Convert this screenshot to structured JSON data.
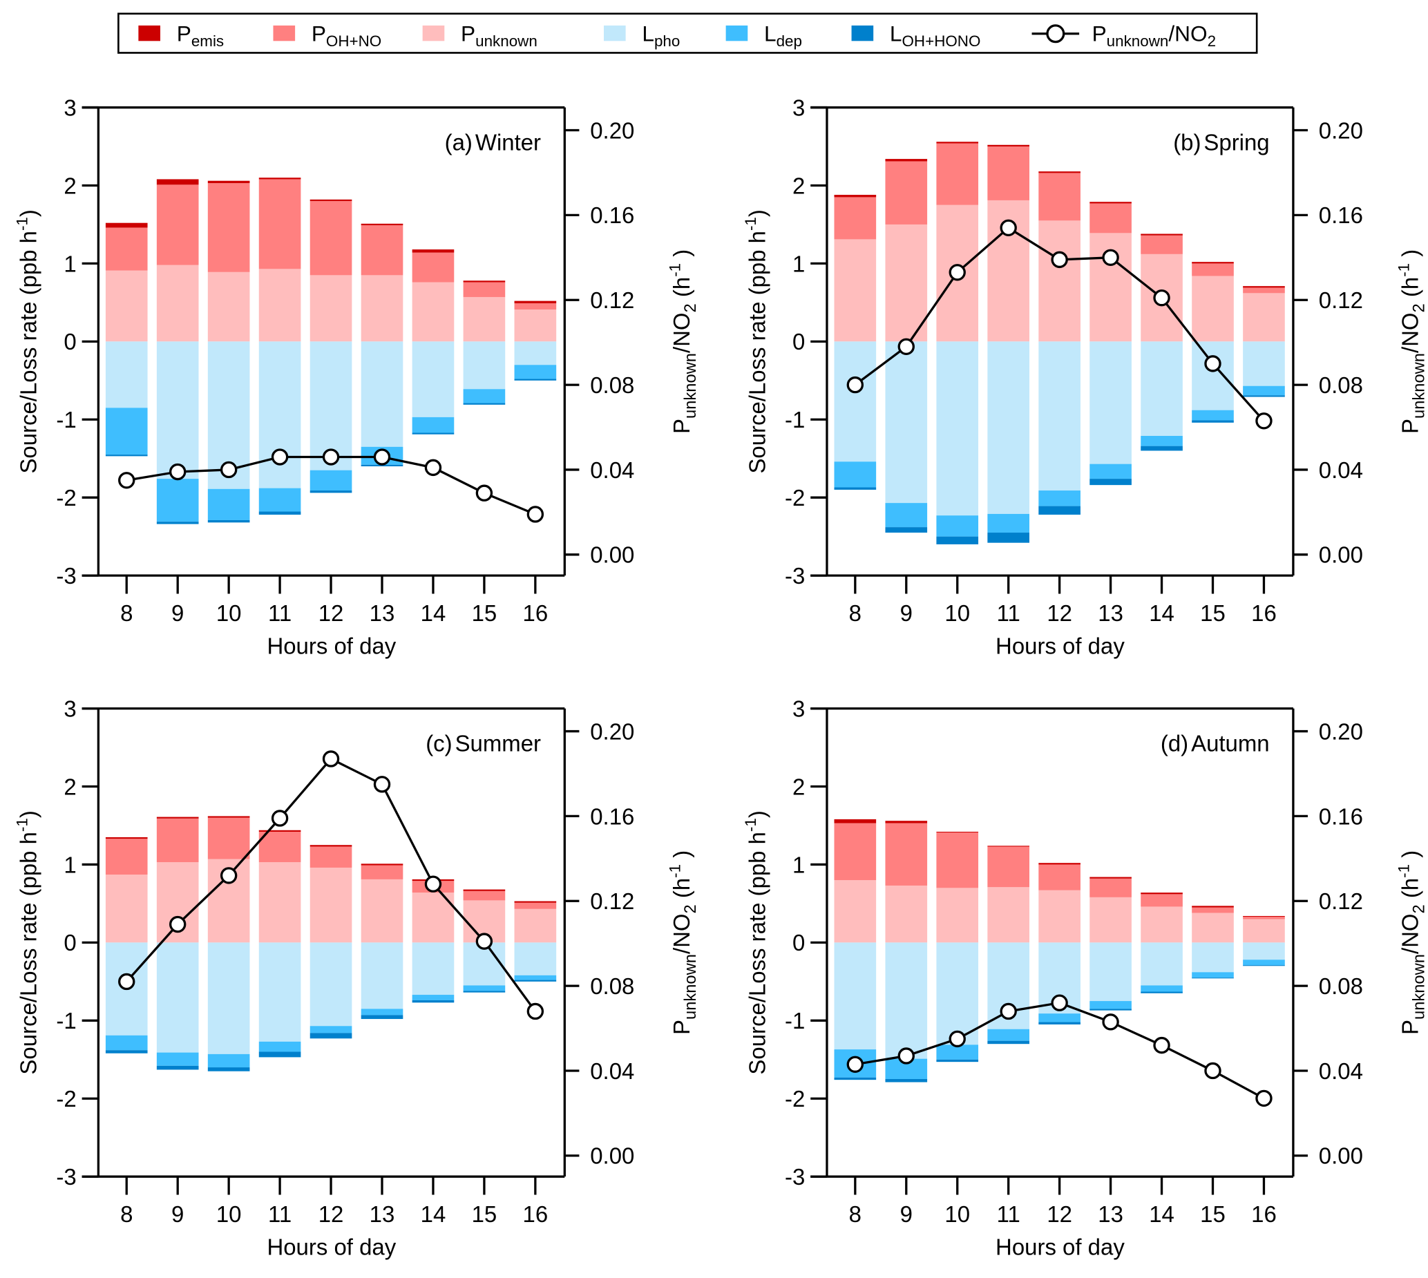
{
  "legend": {
    "items": [
      {
        "key": "P_emis",
        "main": "P",
        "sub": "emis",
        "color": "#cc0000",
        "kind": "bar"
      },
      {
        "key": "P_OH_NO",
        "main": "P",
        "sub": "OH+NO",
        "color": "#ff8080",
        "kind": "bar"
      },
      {
        "key": "P_unknown",
        "main": "P",
        "sub": "unknown",
        "color": "#ffbdbd",
        "kind": "bar"
      },
      {
        "key": "L_pho",
        "main": "L",
        "sub": "pho",
        "color": "#c1e8fb",
        "kind": "bar"
      },
      {
        "key": "L_dep",
        "main": "L",
        "sub": "dep",
        "color": "#3fbefe",
        "kind": "bar"
      },
      {
        "key": "L_OH_HONO",
        "main": "L",
        "sub": "OH+HONO",
        "color": "#0080cc",
        "kind": "bar"
      },
      {
        "key": "ratio",
        "main": "P",
        "sub": "unknown",
        "suffix": "/NO",
        "suffix_sub": "2",
        "color": "#000000",
        "kind": "line"
      }
    ]
  },
  "chart_data": [
    {
      "type": "bar",
      "panel": "a",
      "title": "(a) Winter",
      "label_prefix": "(a)",
      "label_name": "Winter",
      "xlabel": "Hours of day",
      "ylabel": "Source/Loss rate (ppb h-1)",
      "y2label": "Punknown/NO2 (h-1)",
      "categories": [
        "8",
        "9",
        "10",
        "11",
        "12",
        "13",
        "14",
        "15",
        "16"
      ],
      "ylim": [
        -3,
        3
      ],
      "yticks": [
        "3",
        "2",
        "1",
        "0",
        "-1",
        "-2",
        "-3"
      ],
      "y2lim": [
        -0.01,
        0.21
      ],
      "y2ticks": [
        "0.20",
        "0.16",
        "0.12",
        "0.08",
        "0.04",
        "0.00"
      ],
      "stacked": true,
      "series": [
        {
          "name": "P_unknown",
          "values": [
            0.91,
            0.98,
            0.89,
            0.93,
            0.85,
            0.85,
            0.76,
            0.57,
            0.41
          ]
        },
        {
          "name": "P_OH+NO",
          "values": [
            0.55,
            1.03,
            1.14,
            1.15,
            0.95,
            0.64,
            0.38,
            0.19,
            0.08
          ]
        },
        {
          "name": "P_emis",
          "values": [
            0.06,
            0.07,
            0.03,
            0.02,
            0.02,
            0.02,
            0.04,
            0.02,
            0.03
          ]
        },
        {
          "name": "L_pho",
          "values": [
            -0.85,
            -1.76,
            -1.89,
            -1.88,
            -1.65,
            -1.35,
            -0.97,
            -0.61,
            -0.3
          ]
        },
        {
          "name": "L_dep",
          "values": [
            -0.6,
            -0.55,
            -0.4,
            -0.3,
            -0.26,
            -0.23,
            -0.2,
            -0.18,
            -0.18
          ]
        },
        {
          "name": "L_OH+HONO",
          "values": [
            -0.02,
            -0.03,
            -0.03,
            -0.04,
            -0.03,
            -0.02,
            -0.02,
            -0.02,
            -0.02
          ]
        }
      ],
      "line": {
        "name": "Punknown/NO2",
        "axis": "right",
        "values": [
          0.035,
          0.039,
          0.04,
          0.046,
          0.046,
          0.046,
          0.041,
          0.029,
          0.019
        ]
      }
    },
    {
      "type": "bar",
      "panel": "b",
      "title": "(b) Spring",
      "label_prefix": "(b)",
      "label_name": "Spring",
      "xlabel": "Hours of day",
      "ylabel": "Source/Loss rate (ppb h-1)",
      "y2label": "Punknown/NO2 (h-1)",
      "categories": [
        "8",
        "9",
        "10",
        "11",
        "12",
        "13",
        "14",
        "15",
        "16"
      ],
      "ylim": [
        -3,
        3
      ],
      "yticks": [
        "3",
        "2",
        "1",
        "0",
        "-1",
        "-2",
        "-3"
      ],
      "y2lim": [
        -0.01,
        0.21
      ],
      "y2ticks": [
        "0.20",
        "0.16",
        "0.12",
        "0.08",
        "0.04",
        "0.00"
      ],
      "stacked": true,
      "series": [
        {
          "name": "P_unknown",
          "values": [
            1.31,
            1.5,
            1.75,
            1.81,
            1.55,
            1.39,
            1.12,
            0.84,
            0.62
          ]
        },
        {
          "name": "P_OH+NO",
          "values": [
            0.54,
            0.81,
            0.79,
            0.69,
            0.61,
            0.38,
            0.24,
            0.16,
            0.07
          ]
        },
        {
          "name": "P_emis",
          "values": [
            0.03,
            0.03,
            0.02,
            0.02,
            0.02,
            0.02,
            0.02,
            0.02,
            0.02
          ]
        },
        {
          "name": "L_pho",
          "values": [
            -1.54,
            -2.07,
            -2.23,
            -2.21,
            -1.91,
            -1.57,
            -1.21,
            -0.88,
            -0.57
          ]
        },
        {
          "name": "L_dep",
          "values": [
            -0.33,
            -0.31,
            -0.27,
            -0.24,
            -0.2,
            -0.19,
            -0.13,
            -0.13,
            -0.12
          ]
        },
        {
          "name": "L_OH+HONO",
          "values": [
            -0.03,
            -0.07,
            -0.1,
            -0.13,
            -0.11,
            -0.08,
            -0.06,
            -0.03,
            -0.02
          ]
        }
      ],
      "line": {
        "name": "Punknown/NO2",
        "axis": "right",
        "values": [
          0.08,
          0.098,
          0.133,
          0.154,
          0.139,
          0.14,
          0.121,
          0.09,
          0.063
        ]
      }
    },
    {
      "type": "bar",
      "panel": "c",
      "title": "(c) Summer",
      "label_prefix": "(c)",
      "label_name": "Summer",
      "xlabel": "Hours of day",
      "ylabel": "Source/Loss rate (ppb h-1)",
      "y2label": "Punknown/NO2 (h-1)",
      "categories": [
        "8",
        "9",
        "10",
        "11",
        "12",
        "13",
        "14",
        "15",
        "16"
      ],
      "ylim": [
        -3,
        3
      ],
      "yticks": [
        "3",
        "2",
        "1",
        "0",
        "-1",
        "-2",
        "-3"
      ],
      "y2lim": [
        -0.01,
        0.21
      ],
      "y2ticks": [
        "0.20",
        "0.16",
        "0.12",
        "0.08",
        "0.04",
        "0.00"
      ],
      "stacked": true,
      "series": [
        {
          "name": "P_unknown",
          "values": [
            0.87,
            1.03,
            1.07,
            1.03,
            0.96,
            0.81,
            0.64,
            0.54,
            0.43
          ]
        },
        {
          "name": "P_OH+NO",
          "values": [
            0.46,
            0.56,
            0.53,
            0.39,
            0.27,
            0.18,
            0.15,
            0.12,
            0.08
          ]
        },
        {
          "name": "P_emis",
          "values": [
            0.02,
            0.02,
            0.02,
            0.02,
            0.02,
            0.02,
            0.02,
            0.02,
            0.02
          ]
        },
        {
          "name": "L_pho",
          "values": [
            -1.19,
            -1.41,
            -1.43,
            -1.27,
            -1.07,
            -0.85,
            -0.67,
            -0.55,
            -0.42
          ]
        },
        {
          "name": "L_dep",
          "values": [
            -0.19,
            -0.17,
            -0.17,
            -0.13,
            -0.09,
            -0.08,
            -0.07,
            -0.07,
            -0.06
          ]
        },
        {
          "name": "L_OH+HONO",
          "values": [
            -0.04,
            -0.05,
            -0.05,
            -0.07,
            -0.07,
            -0.05,
            -0.03,
            -0.02,
            -0.02
          ]
        }
      ],
      "line": {
        "name": "Punknown/NO2",
        "axis": "right",
        "values": [
          0.082,
          0.109,
          0.132,
          0.159,
          0.187,
          0.175,
          0.128,
          0.101,
          0.068
        ]
      }
    },
    {
      "type": "bar",
      "panel": "d",
      "title": "(d) Autumn",
      "label_prefix": "(d)",
      "label_name": "Autumn",
      "xlabel": "Hours of day",
      "ylabel": "Source/Loss rate (ppb h-1)",
      "y2label": "Punknown/NO2 (h-1)",
      "categories": [
        "8",
        "9",
        "10",
        "11",
        "12",
        "13",
        "14",
        "15",
        "16"
      ],
      "ylim": [
        -3,
        3
      ],
      "yticks": [
        "3",
        "2",
        "1",
        "0",
        "-1",
        "-2",
        "-3"
      ],
      "y2lim": [
        -0.01,
        0.21
      ],
      "y2ticks": [
        "0.20",
        "0.16",
        "0.12",
        "0.08",
        "0.04",
        "0.00"
      ],
      "stacked": true,
      "series": [
        {
          "name": "P_unknown",
          "values": [
            0.8,
            0.73,
            0.7,
            0.71,
            0.67,
            0.58,
            0.46,
            0.38,
            0.3
          ]
        },
        {
          "name": "P_OH+NO",
          "values": [
            0.73,
            0.8,
            0.71,
            0.52,
            0.33,
            0.24,
            0.16,
            0.07,
            0.03
          ]
        },
        {
          "name": "P_emis",
          "values": [
            0.05,
            0.03,
            0.01,
            0.01,
            0.02,
            0.02,
            0.02,
            0.02,
            0.01
          ]
        },
        {
          "name": "L_pho",
          "values": [
            -1.37,
            -1.49,
            -1.31,
            -1.11,
            -0.91,
            -0.75,
            -0.55,
            -0.38,
            -0.22
          ]
        },
        {
          "name": "L_dep",
          "values": [
            -0.36,
            -0.26,
            -0.19,
            -0.15,
            -0.11,
            -0.1,
            -0.08,
            -0.07,
            -0.07
          ]
        },
        {
          "name": "L_OH+HONO",
          "values": [
            -0.03,
            -0.04,
            -0.03,
            -0.04,
            -0.03,
            -0.02,
            -0.02,
            -0.01,
            -0.01
          ]
        }
      ],
      "line": {
        "name": "Punknown/NO2",
        "axis": "right",
        "values": [
          0.043,
          0.047,
          0.055,
          0.068,
          0.072,
          0.063,
          0.052,
          0.04,
          0.027
        ]
      }
    }
  ]
}
